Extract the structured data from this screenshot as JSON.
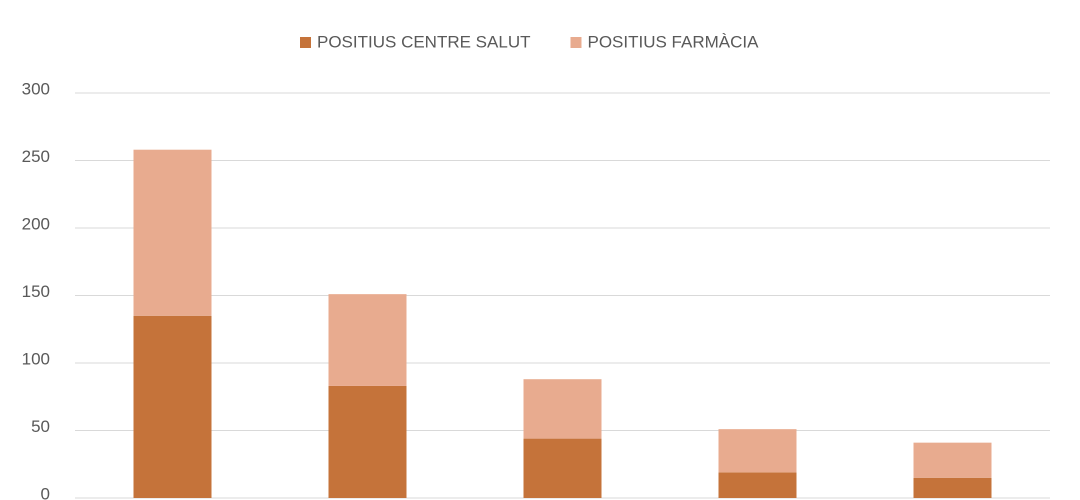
{
  "chart_data": {
    "type": "stacked_bar",
    "categories": [
      null,
      null,
      null,
      null,
      null
    ],
    "series": [
      {
        "name": "POSITIUS CENTRE SALUT",
        "color": "#c5733a",
        "values": [
          135,
          83,
          44,
          19,
          15
        ]
      },
      {
        "name": "POSITIUS FARMÀCIA",
        "color": "#e8ab8f",
        "values": [
          123,
          68,
          44,
          32,
          26
        ]
      }
    ],
    "ylim": [
      0,
      300
    ],
    "yticks": [
      0,
      50,
      100,
      150,
      200,
      250,
      300
    ],
    "grid": true,
    "legend": "top"
  }
}
